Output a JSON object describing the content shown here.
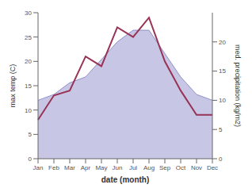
{
  "chart_data": {
    "type": "line",
    "categories": [
      "Jan",
      "Feb",
      "Mar",
      "Apr",
      "May",
      "Jun",
      "Jul",
      "Aug",
      "Sep",
      "Oct",
      "Nov",
      "Dec"
    ],
    "series": [
      {
        "type": "area",
        "color": "#9090cc",
        "axis": "y2",
        "values": [
          10,
          11,
          13,
          14,
          17,
          20,
          22,
          22,
          18,
          14,
          11,
          10
        ]
      },
      {
        "type": "line",
        "color": "#993355",
        "values": [
          8,
          13,
          14,
          21,
          19,
          27,
          25,
          29,
          20,
          14,
          9,
          9
        ]
      }
    ],
    "xlabel": "date (month)",
    "ylabel": "max temp (C)",
    "y2label": "med. precipitation (kg/m2)",
    "ylim": [
      0,
      30
    ],
    "yticks": [
      0,
      5,
      10,
      15,
      20,
      25,
      30
    ],
    "y2lim": [
      0,
      25
    ],
    "y2ticks": [
      0,
      5,
      10,
      15,
      20
    ],
    "grid": false
  }
}
